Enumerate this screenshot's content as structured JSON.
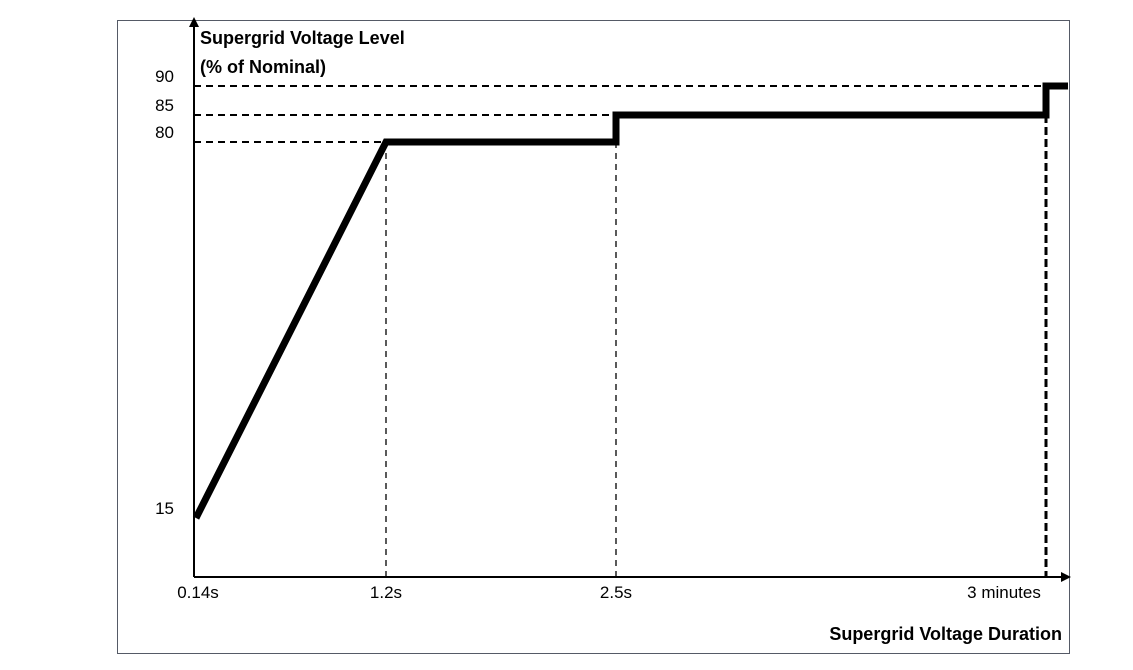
{
  "chart_data": {
    "type": "line",
    "title": "",
    "ylabel_line1": "Supergrid Voltage Level",
    "ylabel_line2": "(% of Nominal)",
    "xlabel": "Supergrid Voltage Duration",
    "x_tick_labels": [
      "0.14s",
      "1.2s",
      "2.5s",
      "3 minutes"
    ],
    "y_tick_values": [
      15,
      80,
      85,
      90
    ],
    "y_tick_labels": [
      "15",
      "80",
      "85",
      "90"
    ],
    "ylim": [
      0,
      90
    ],
    "x_scale": "non-linear (categorical breakpoints)",
    "grid": false,
    "series": [
      {
        "points": [
          {
            "x": "0.14s",
            "y": 15
          },
          {
            "x": "1.2s",
            "y": 80
          },
          {
            "x": "2.5s",
            "y": 80
          },
          {
            "x": "2.5s",
            "y": 85
          },
          {
            "x": "3 minutes",
            "y": 85
          },
          {
            "x": "3 minutes",
            "y": 90
          }
        ]
      }
    ],
    "reference_lines": {
      "horizontal_dashed_at_y": [
        80,
        85,
        90
      ],
      "vertical_dashed_at_x": [
        "1.2s",
        "2.5s",
        "3 minutes"
      ]
    },
    "colors": {
      "line": "#000000",
      "frame": "#555a66"
    }
  }
}
